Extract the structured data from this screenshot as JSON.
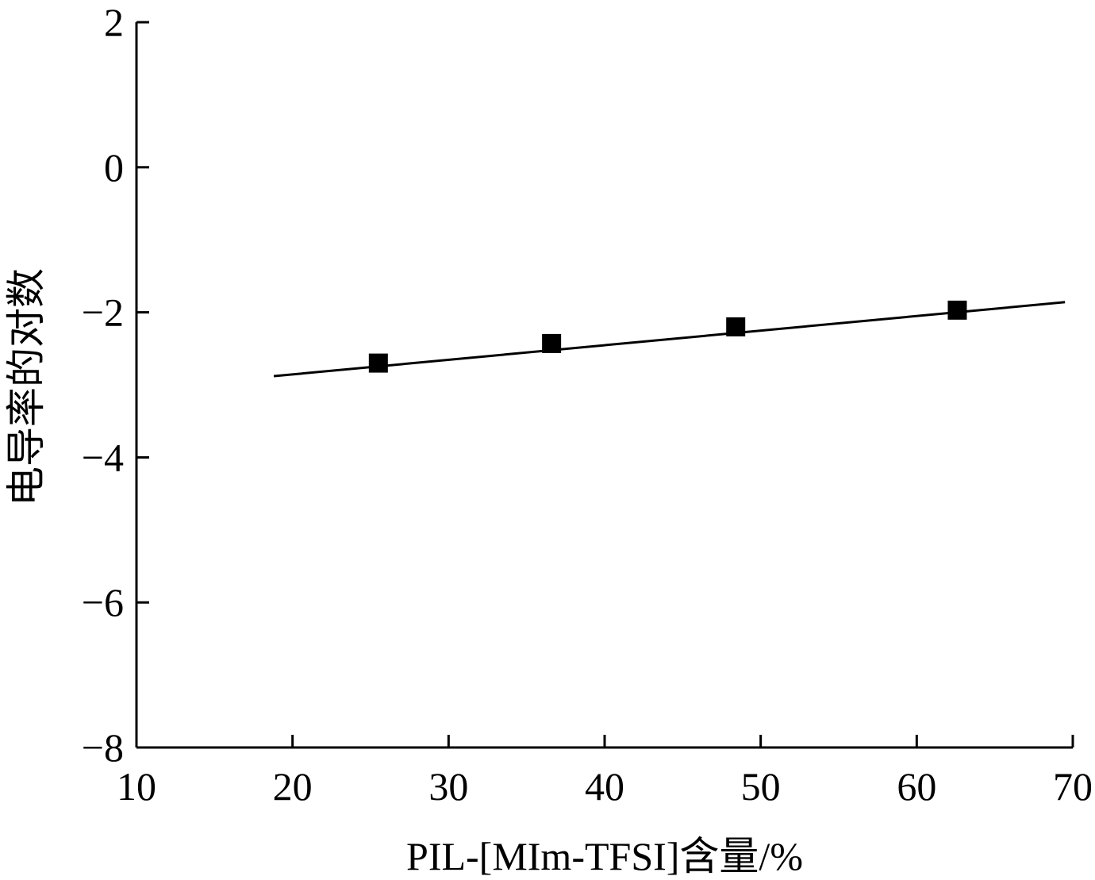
{
  "chart_data": {
    "type": "scatter",
    "title": "",
    "xlabel": "PIL-[MIm-TFSI]含量/%",
    "ylabel": "电导率的对数",
    "xlim": [
      10,
      70
    ],
    "ylim": [
      -8,
      2
    ],
    "xticks": [
      10,
      20,
      30,
      40,
      50,
      60,
      70
    ],
    "xtick_labels": [
      "10",
      "20",
      "30",
      "40",
      "50",
      "60",
      "70"
    ],
    "yticks": [
      -8,
      -6,
      -4,
      -2,
      0,
      2
    ],
    "ytick_labels": [
      "−8",
      "−6",
      "−4",
      "−2",
      "0",
      "2"
    ],
    "grid": false,
    "series": [
      {
        "marker": "square",
        "color": "#000000",
        "x": [
          25.5,
          36.6,
          48.4,
          62.6
        ],
        "y": [
          -2.7,
          -2.43,
          -2.2,
          -1.97
        ]
      }
    ],
    "fit_line": {
      "color": "#000000",
      "x": [
        18.8,
        69.5
      ],
      "y": [
        -2.88,
        -1.86
      ]
    }
  }
}
